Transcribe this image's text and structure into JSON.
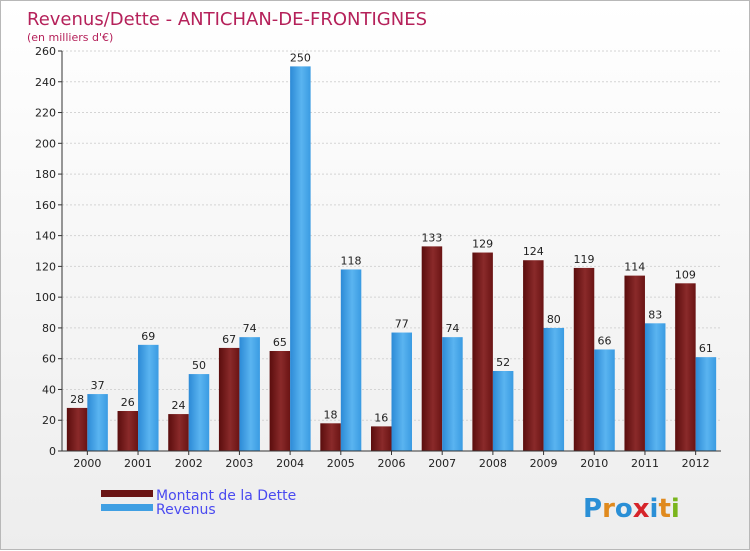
{
  "chart_data": {
    "type": "bar",
    "title": "Revenus/Dette - ANTICHAN-DE-FRONTIGNES",
    "subtitle": "(en milliers d'€)",
    "categories": [
      "2000",
      "2001",
      "2002",
      "2003",
      "2004",
      "2005",
      "2006",
      "2007",
      "2008",
      "2009",
      "2010",
      "2011",
      "2012"
    ],
    "series": [
      {
        "name": "Montant de la Dette",
        "color": "#7a1c1c",
        "values": [
          28,
          26,
          24,
          67,
          65,
          18,
          16,
          133,
          129,
          124,
          119,
          114,
          109
        ]
      },
      {
        "name": "Revenus",
        "color": "#3f9fe3",
        "values": [
          37,
          69,
          50,
          74,
          250,
          118,
          77,
          74,
          52,
          80,
          66,
          83,
          61
        ]
      }
    ],
    "ylim": [
      0,
      260
    ],
    "yticks": [
      0,
      20,
      40,
      60,
      80,
      100,
      120,
      140,
      160,
      180,
      200,
      220,
      240,
      260
    ],
    "grid": true,
    "legend": "bottom-left"
  },
  "logo": {
    "letters": [
      "P",
      "r",
      "o",
      "x",
      "i",
      "t",
      "i"
    ],
    "colors": [
      "#2a8fd6",
      "#e08a1e",
      "#2a8fd6",
      "#d6242a",
      "#2a8fd6",
      "#e08a1e",
      "#7ab51d"
    ]
  }
}
